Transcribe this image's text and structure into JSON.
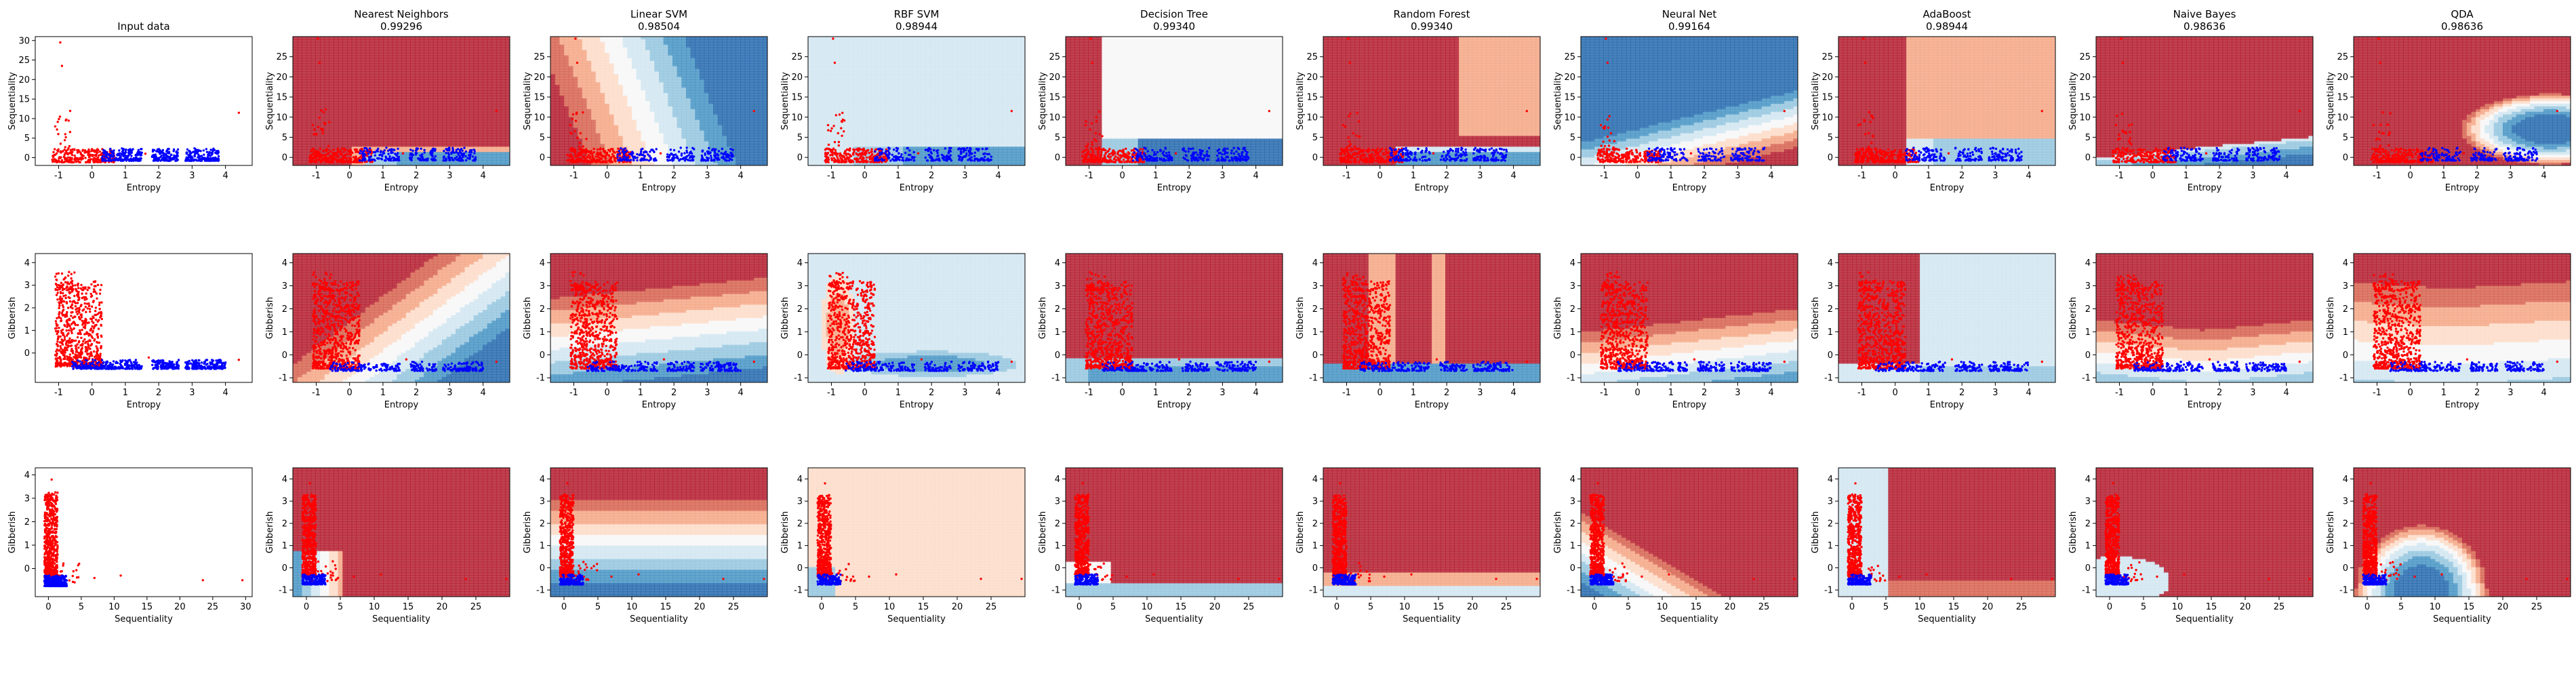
{
  "figure": {
    "columns": [
      {
        "title": "Input data",
        "score": ""
      },
      {
        "title": "Nearest Neighbors",
        "score": "0.99296"
      },
      {
        "title": "Linear SVM",
        "score": "0.98504"
      },
      {
        "title": "RBF SVM",
        "score": "0.98944"
      },
      {
        "title": "Decision Tree",
        "score": "0.99340"
      },
      {
        "title": "Random Forest",
        "score": "0.99340"
      },
      {
        "title": "Neural Net",
        "score": "0.99164"
      },
      {
        "title": "AdaBoost",
        "score": "0.98944"
      },
      {
        "title": "Naive Bayes",
        "score": "0.98636"
      },
      {
        "title": "QDA",
        "score": "0.98636"
      }
    ],
    "colors": {
      "class_red": "#ff0000",
      "class_blue": "#0000ff",
      "rdbu_dark_red": "#b2182b",
      "rdbu_red": "#d6604d",
      "rdbu_light_red": "#f4a582",
      "rdbu_pale_red": "#fddbc7",
      "rdbu_white": "#f7f7f7",
      "rdbu_pale_blue": "#d1e5f0",
      "rdbu_light_blue": "#92c5de",
      "rdbu_blue": "#4393c3",
      "rdbu_dark_blue": "#2166ac"
    }
  },
  "chart_data": {
    "type": "scatter",
    "layout": "grid of 3 rows x 10 columns; column 1 = input data, columns 2-10 = classifier decision surfaces (RdBu colormap) over train/test points",
    "classes": [
      "red",
      "blue"
    ],
    "rows": [
      {
        "xlabel": "Entropy",
        "ylabel": "Sequentiality",
        "input_xlim": [
          -1.7,
          4.8
        ],
        "input_ylim": [
          -2,
          31
        ],
        "input_xticks": [
          "-1",
          "0",
          "1",
          "2",
          "3",
          "4"
        ],
        "input_yticks": [
          "0",
          "5",
          "10",
          "15",
          "20",
          "25",
          "30"
        ],
        "model_xlim": [
          -1.7,
          4.8
        ],
        "model_ylim": [
          -2,
          30
        ],
        "model_xticks": [
          "-1",
          "0",
          "1",
          "2",
          "3",
          "4"
        ],
        "model_yticks": [
          "0",
          "5",
          "10",
          "15",
          "20",
          "25"
        ],
        "red_clusters": [
          {
            "x_range": [
              -1.2,
              0.7
            ],
            "y_range": [
              -1.2,
              2.2
            ],
            "count": 260
          },
          {
            "x_range": [
              -1.1,
              -0.6
            ],
            "y_range": [
              2,
              12
            ],
            "count": 18
          }
        ],
        "blue_clusters": [
          {
            "x_range": [
              0.3,
              1.5
            ],
            "y_range": [
              -0.8,
              2.4
            ],
            "count": 200
          },
          {
            "x_range": [
              1.8,
              2.6
            ],
            "y_range": [
              -0.8,
              2.4
            ],
            "count": 130
          },
          {
            "x_range": [
              2.8,
              3.8
            ],
            "y_range": [
              -0.8,
              2.4
            ],
            "count": 180
          }
        ],
        "red_outliers": [
          [
            -0.9,
            23.5
          ],
          [
            -0.95,
            29.5
          ],
          [
            -1.1,
            8
          ],
          [
            -0.8,
            6
          ],
          [
            1.6,
            1
          ],
          [
            4.4,
            11.5
          ]
        ]
      },
      {
        "xlabel": "Entropy",
        "ylabel": "Gibberish",
        "input_xlim": [
          -1.7,
          4.8
        ],
        "input_ylim": [
          -1.3,
          4.4
        ],
        "input_xticks": [
          "-1",
          "0",
          "1",
          "2",
          "3",
          "4"
        ],
        "input_yticks": [
          "0",
          "1",
          "2",
          "3",
          "4"
        ],
        "model_xlim": [
          -1.7,
          4.8
        ],
        "model_ylim": [
          -1.2,
          4.4
        ],
        "model_xticks": [
          "-1",
          "0",
          "1",
          "2",
          "3",
          "4"
        ],
        "model_yticks": [
          "-1",
          "0",
          "1",
          "2",
          "3",
          "4"
        ],
        "red_clusters": [
          {
            "x_range": [
              -1.1,
              0.3
            ],
            "y_range": [
              -0.6,
              3.2
            ],
            "count": 700
          },
          {
            "x_range": [
              -1.1,
              -0.5
            ],
            "y_range": [
              2.8,
              3.6
            ],
            "count": 30
          }
        ],
        "blue_clusters": [
          {
            "x_range": [
              -0.6,
              1.5
            ],
            "y_range": [
              -0.7,
              -0.3
            ],
            "count": 260
          },
          {
            "x_range": [
              1.8,
              2.6
            ],
            "y_range": [
              -0.7,
              -0.3
            ],
            "count": 120
          },
          {
            "x_range": [
              2.8,
              4.0
            ],
            "y_range": [
              -0.7,
              -0.3
            ],
            "count": 180
          }
        ],
        "red_outliers": [
          [
            4.4,
            -0.3
          ],
          [
            1.7,
            -0.2
          ]
        ]
      },
      {
        "xlabel": "Sequentiality",
        "ylabel": "Gibberish",
        "input_xlim": [
          -2,
          31
        ],
        "input_ylim": [
          -1.2,
          4.3
        ],
        "input_xticks": [
          "0",
          "5",
          "10",
          "15",
          "20",
          "25",
          "30"
        ],
        "input_yticks": [
          "0",
          "1",
          "2",
          "3",
          "4"
        ],
        "model_xlim": [
          -2,
          30
        ],
        "model_ylim": [
          -1.3,
          4.5
        ],
        "model_xticks": [
          "0",
          "5",
          "10",
          "15",
          "20",
          "25"
        ],
        "model_yticks": [
          "-1",
          "0",
          "1",
          "2",
          "3",
          "4"
        ],
        "red_clusters": [
          {
            "x_range": [
              -0.6,
              1.4
            ],
            "y_range": [
              -0.4,
              3.3
            ],
            "count": 600
          },
          {
            "x_range": [
              0.5,
              5
            ],
            "y_range": [
              -0.6,
              0.3
            ],
            "count": 25
          }
        ],
        "blue_clusters": [
          {
            "x_range": [
              -0.6,
              2.8
            ],
            "y_range": [
              -0.75,
              -0.3
            ],
            "count": 350
          }
        ],
        "red_outliers": [
          [
            7,
            -0.4
          ],
          [
            11,
            -0.3
          ],
          [
            23.5,
            -0.5
          ],
          [
            29.5,
            -0.5
          ],
          [
            0.5,
            3.8
          ]
        ]
      }
    ]
  }
}
